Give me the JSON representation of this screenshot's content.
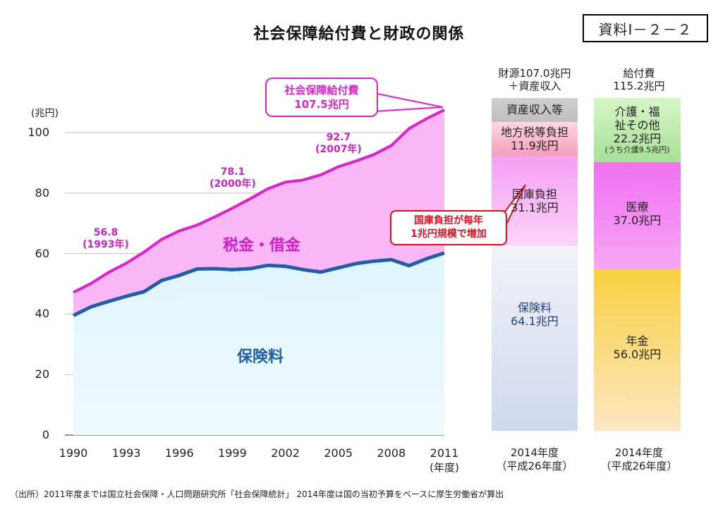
{
  "title": "社会保障給付費と財政の関係",
  "ref_label": "資料Ⅰ－２－２",
  "source_note": "（出所）2011年度までは国立社会保障・人口問題研究所「社会保障統計」 2014年度は国の当初予算をベースに厚生労働省が算出",
  "chart_data": {
    "type": "area",
    "y_unit": "(兆円)",
    "ylim": [
      0,
      110
    ],
    "yticks": [
      "0",
      "20",
      "40",
      "60",
      "80",
      "100"
    ],
    "xticks": [
      "1990",
      "1993",
      "1996",
      "1999",
      "2002",
      "2005",
      "2008",
      "2011"
    ],
    "x_unit": "(年度)",
    "x": [
      1990,
      1991,
      1992,
      1993,
      1994,
      1995,
      1996,
      1997,
      1998,
      1999,
      2000,
      2001,
      2002,
      2003,
      2004,
      2005,
      2006,
      2007,
      2008,
      2009,
      2010,
      2011
    ],
    "series": [
      {
        "name": "社会保障給付費",
        "color": "#e020d0",
        "values": [
          47.2,
          50.1,
          53.8,
          56.8,
          60.5,
          64.7,
          67.5,
          69.4,
          72.1,
          75.0,
          78.1,
          81.4,
          83.6,
          84.3,
          86.0,
          88.7,
          90.6,
          92.7,
          95.7,
          101.3,
          104.6,
          107.5
        ]
      },
      {
        "name": "保険料",
        "color": "#1f5fa8",
        "values": [
          39.5,
          42.4,
          44.2,
          45.9,
          47.4,
          51.1,
          52.8,
          54.9,
          55.0,
          54.7,
          55.0,
          56.1,
          55.8,
          54.7,
          53.9,
          55.3,
          56.7,
          57.5,
          58.0,
          56.0,
          58.3,
          60.2
        ]
      }
    ],
    "annotations": [
      {
        "label": "56.8",
        "sub": "(1993年)"
      },
      {
        "label": "78.1",
        "sub": "(2000年)"
      },
      {
        "label": "92.7",
        "sub": "(2007年)"
      }
    ],
    "callout_total": {
      "line1": "社会保障給付費",
      "line2": "107.5兆円"
    },
    "callout_tax": {
      "line1": "国庫負担が毎年",
      "line2": "1兆円規模で増加"
    },
    "area_labels": {
      "tax": "税金・借金",
      "premium": "保険料"
    },
    "colors": {
      "tax_area": "#f9b8f5",
      "premium_area": "#e0f6fb",
      "accent": "#e020d0",
      "alert": "#e01020"
    },
    "stacks": [
      {
        "head": [
          "財源107.0兆円",
          "＋資産収入"
        ],
        "foot": [
          "2014年度",
          "（平成26年度）"
        ],
        "segments": [
          {
            "name": "保険料",
            "value": 64.1,
            "value_label": "64.1兆円",
            "color_top": "#f2f2f8",
            "color_bottom": "#cfd8ee"
          },
          {
            "name": "国庫負担",
            "value": 31.1,
            "value_label": "31.1兆円",
            "color_top": "#f4a0f4",
            "color_bottom": "#fbd4f8"
          },
          {
            "name": "地方税等負担",
            "value": 11.9,
            "value_label": "11.9兆円",
            "color_top": "#ffd8e6",
            "color_bottom": "#f49cba"
          },
          {
            "name": "資産収入等",
            "value": 8.3,
            "value_label": "",
            "color_top": "#d0d0d0",
            "color_bottom": "#bdbdbd"
          }
        ]
      },
      {
        "head": [
          "給付費",
          "115.2兆円"
        ],
        "foot": [
          "2014年度",
          "（平成26年度）"
        ],
        "segments": [
          {
            "name": "年金",
            "value": 56.0,
            "value_label": "56.0兆円",
            "color_top": "#f8d040",
            "color_bottom": "#fde6c4"
          },
          {
            "name": "医療",
            "value": 37.0,
            "value_label": "37.0兆円",
            "color_top": "#f070f0",
            "color_bottom": "#f6a6f4"
          },
          {
            "name": "介護・福祉その他",
            "value": 22.2,
            "value_label": "22.2兆円",
            "sub_label": "(うち介護9.5兆円)",
            "color_top": "#d8f5c8",
            "color_bottom": "#a6e096"
          }
        ]
      }
    ]
  }
}
